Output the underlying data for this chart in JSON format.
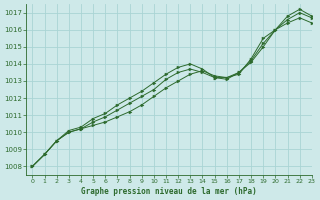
{
  "title": "Graphe pression niveau de la mer (hPa)",
  "xlim": [
    -0.5,
    23
  ],
  "ylim": [
    1007.5,
    1017.5
  ],
  "yticks": [
    1008,
    1009,
    1010,
    1011,
    1012,
    1013,
    1014,
    1015,
    1016,
    1017
  ],
  "xticks": [
    0,
    1,
    2,
    3,
    4,
    5,
    6,
    7,
    8,
    9,
    10,
    11,
    12,
    13,
    14,
    15,
    16,
    17,
    18,
    19,
    20,
    21,
    22,
    23
  ],
  "bg_color": "#cee9e9",
  "grid_color": "#aad4d4",
  "line_color": "#2d6a2d",
  "line1": [
    1008.0,
    1008.7,
    1009.5,
    1010.0,
    1010.2,
    1010.4,
    1010.6,
    1010.9,
    1011.2,
    1011.6,
    1012.1,
    1012.6,
    1013.0,
    1013.4,
    1013.6,
    1013.3,
    1013.2,
    1013.4,
    1014.3,
    1015.5,
    1016.0,
    1016.8,
    1017.2,
    1016.8
  ],
  "line2": [
    1008.0,
    1008.7,
    1009.5,
    1010.0,
    1010.2,
    1010.6,
    1010.9,
    1011.3,
    1011.7,
    1012.1,
    1012.5,
    1013.1,
    1013.5,
    1013.7,
    1013.5,
    1013.2,
    1013.2,
    1013.5,
    1014.2,
    1015.2,
    1016.0,
    1016.6,
    1017.0,
    1016.7
  ],
  "line3": [
    1008.0,
    1008.7,
    1009.5,
    1010.1,
    1010.3,
    1010.8,
    1011.1,
    1011.6,
    1012.0,
    1012.4,
    1012.9,
    1013.4,
    1013.8,
    1014.0,
    1013.7,
    1013.2,
    1013.1,
    1013.5,
    1014.1,
    1015.0,
    1016.0,
    1016.4,
    1016.7,
    1016.4
  ]
}
